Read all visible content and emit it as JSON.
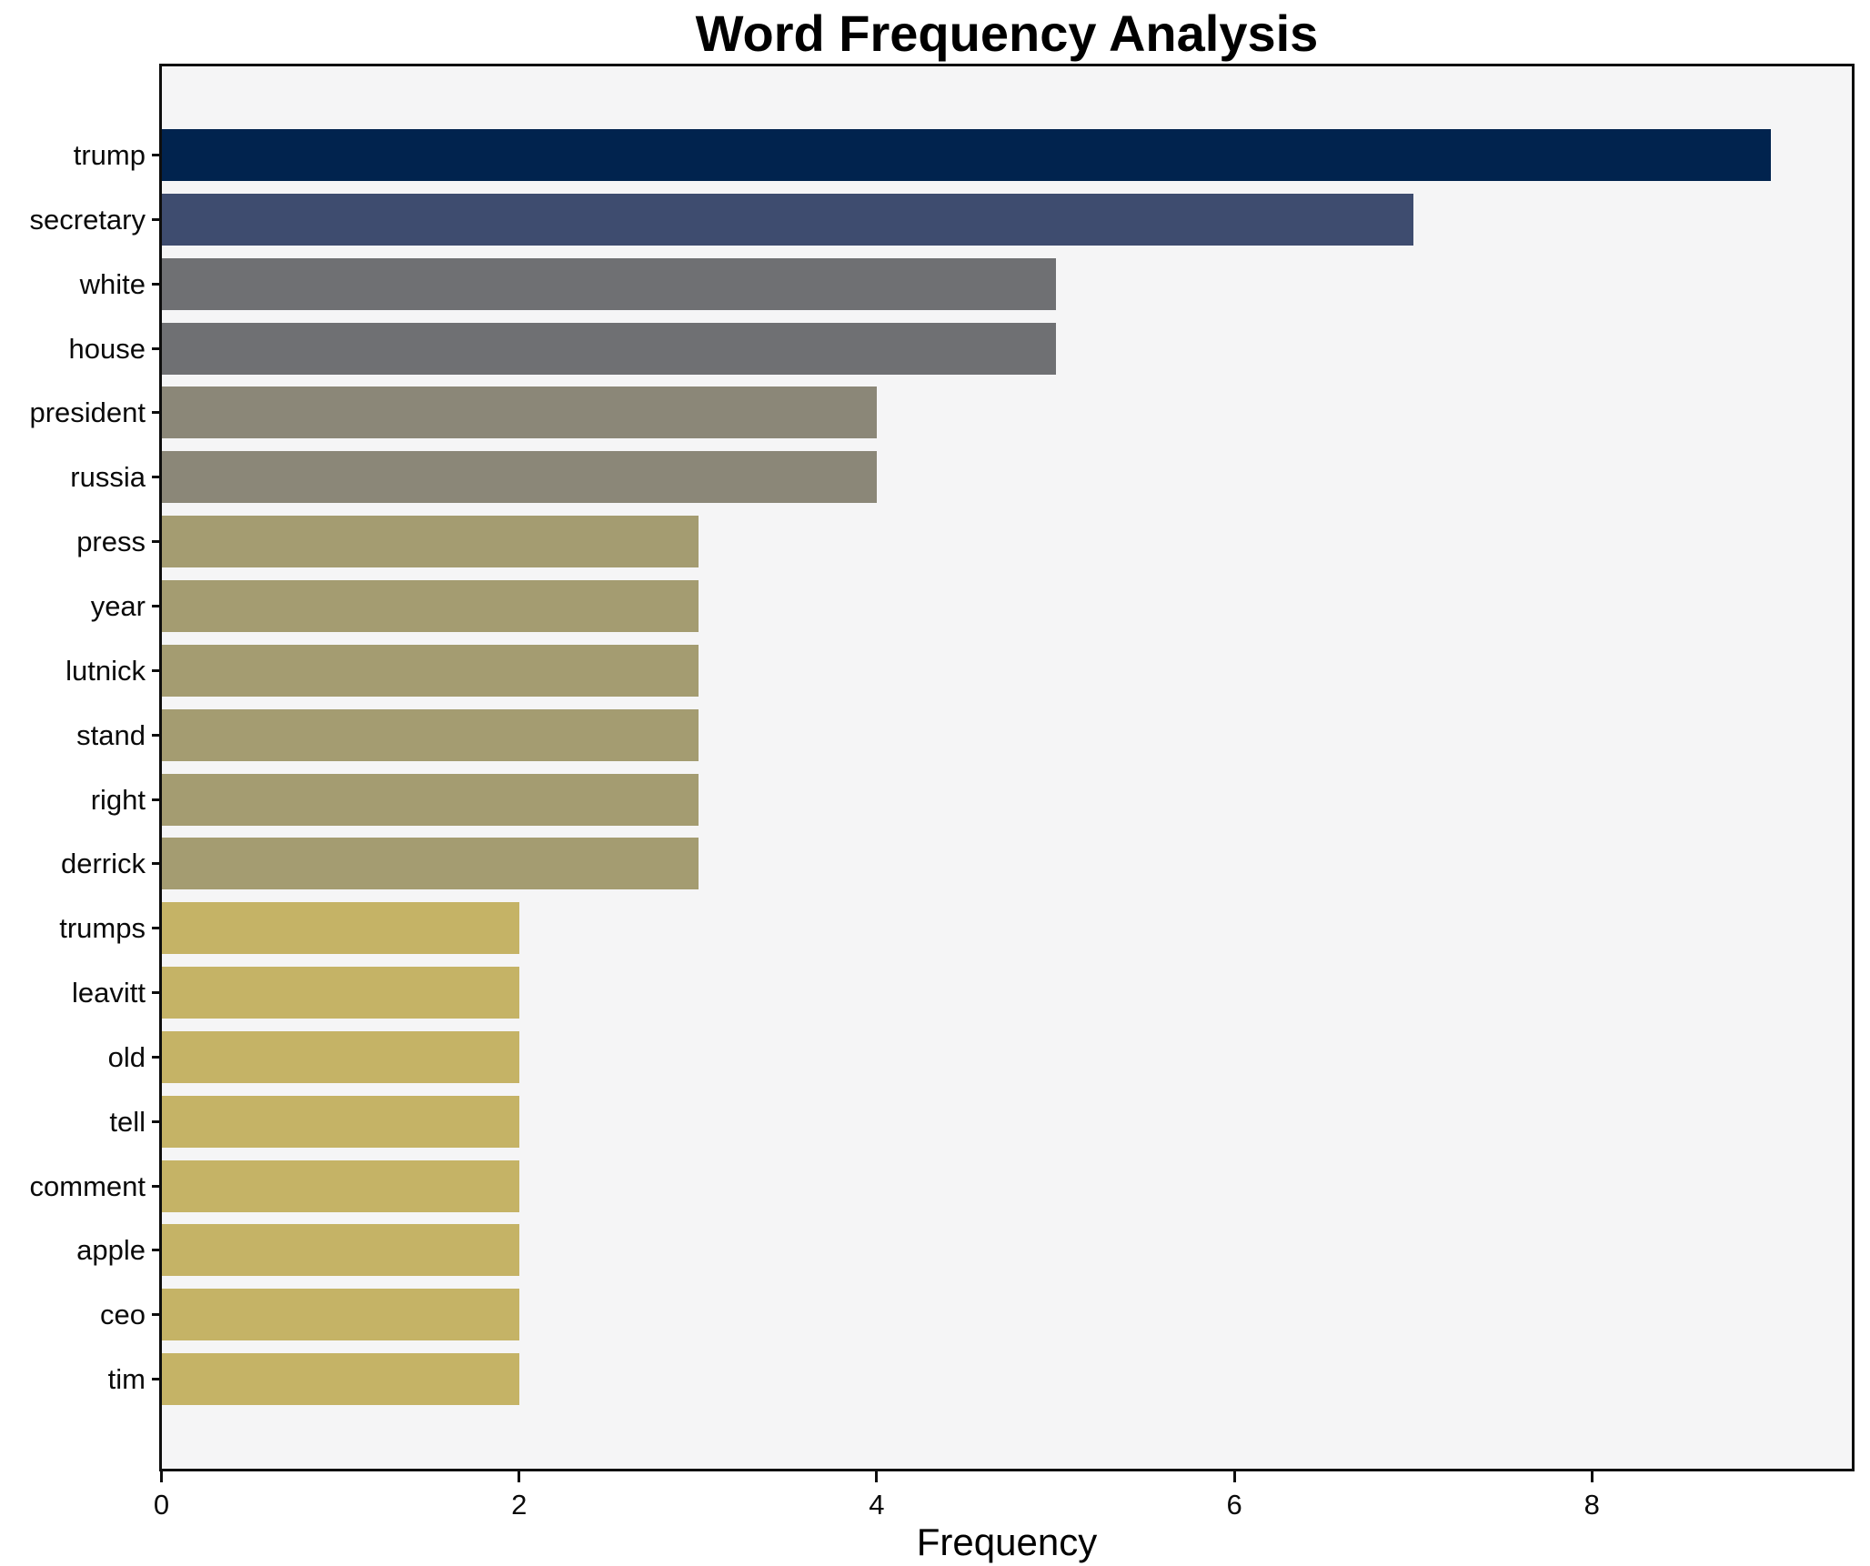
{
  "chart_data": {
    "type": "bar",
    "orientation": "horizontal",
    "title": "Word Frequency Analysis",
    "xlabel": "Frequency",
    "ylabel": "",
    "categories": [
      "trump",
      "secretary",
      "white",
      "house",
      "president",
      "russia",
      "press",
      "year",
      "lutnick",
      "stand",
      "right",
      "derrick",
      "trumps",
      "leavitt",
      "old",
      "tell",
      "comment",
      "apple",
      "ceo",
      "tim"
    ],
    "values": [
      9,
      7,
      5,
      5,
      4,
      4,
      3,
      3,
      3,
      3,
      3,
      3,
      2,
      2,
      2,
      2,
      2,
      2,
      2,
      2
    ],
    "bar_colors": [
      "#01234e",
      "#3e4c6f",
      "#6f7073",
      "#6f7073",
      "#8b8778",
      "#8b8778",
      "#a49c71",
      "#a49c71",
      "#a49c71",
      "#a49c71",
      "#a49c71",
      "#a49c71",
      "#c5b366",
      "#c5b366",
      "#c5b366",
      "#c5b366",
      "#c5b366",
      "#c5b366",
      "#c5b366",
      "#c5b366"
    ],
    "x_ticks": [
      0,
      2,
      4,
      6,
      8
    ],
    "xlim": [
      0,
      9.45
    ],
    "grid": false,
    "legend": null,
    "colors": {
      "plot_background": "#f5f5f6",
      "figure_background": "#ffffff",
      "spine": "#0e0e0e",
      "text": "#000000"
    }
  }
}
